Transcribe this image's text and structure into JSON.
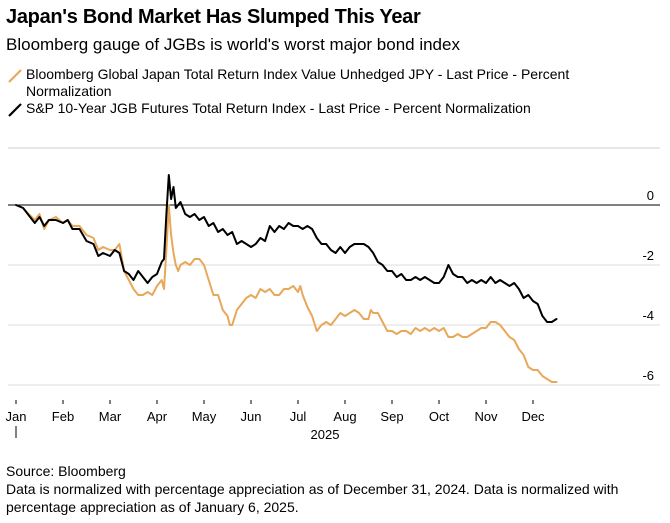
{
  "header": {
    "title": "Japan's Bond Market Has Slumped This Year",
    "subtitle": "Bloomberg gauge of JGBs is world's worst major bond index"
  },
  "footer": {
    "source": "Source: Bloomberg",
    "note": "Data is normalized with percentage appreciation as of December 31, 2024. Data is normalized with percentage appreciation as of January 6, 2025."
  },
  "chart_data": {
    "type": "line",
    "title": "Japan's Bond Market Has Slumped This Year",
    "subtitle": "Bloomberg gauge of JGBs is world's worst major bond index",
    "xlabel": "2025",
    "ylabel": "",
    "x_ticks": [
      "Jan",
      "Feb",
      "Mar",
      "Apr",
      "May",
      "Jun",
      "Jul",
      "Aug",
      "Sep",
      "Oct",
      "Nov",
      "Dec"
    ],
    "y_ticks": [
      0,
      -2,
      -4,
      -6
    ],
    "xlim": [
      0,
      11.55
    ],
    "ylim": [
      -6.5,
      1.9
    ],
    "grid": true,
    "legend_position": "top-left",
    "colors": {
      "orange": "#e8a85a",
      "black": "#000000",
      "grid": "#dddddd"
    },
    "series": [
      {
        "name": "Bloomberg Global Japan Total Return Index Value Unhedged JPY - Last Price - Percent Normalization",
        "color": "#e8a85a",
        "points": [
          [
            0.0,
            0.0
          ],
          [
            0.15,
            -0.1
          ],
          [
            0.3,
            -0.35
          ],
          [
            0.4,
            -0.5
          ],
          [
            0.5,
            -0.3
          ],
          [
            0.6,
            -0.8
          ],
          [
            0.7,
            -0.5
          ],
          [
            0.85,
            -0.4
          ],
          [
            1.0,
            -0.6
          ],
          [
            1.1,
            -0.5
          ],
          [
            1.2,
            -0.7
          ],
          [
            1.35,
            -0.7
          ],
          [
            1.5,
            -1.0
          ],
          [
            1.65,
            -1.1
          ],
          [
            1.75,
            -1.5
          ],
          [
            1.85,
            -1.4
          ],
          [
            2.0,
            -1.5
          ],
          [
            2.1,
            -1.5
          ],
          [
            2.2,
            -1.3
          ],
          [
            2.3,
            -2.2
          ],
          [
            2.4,
            -2.5
          ],
          [
            2.5,
            -2.8
          ],
          [
            2.6,
            -3.0
          ],
          [
            2.7,
            -3.0
          ],
          [
            2.8,
            -2.9
          ],
          [
            2.9,
            -3.0
          ],
          [
            3.0,
            -2.7
          ],
          [
            3.1,
            -2.5
          ],
          [
            3.15,
            -2.8
          ],
          [
            3.2,
            -1.5
          ],
          [
            3.25,
            0.0
          ],
          [
            3.3,
            -1.0
          ],
          [
            3.35,
            -1.6
          ],
          [
            3.4,
            -2.0
          ],
          [
            3.45,
            -2.2
          ],
          [
            3.5,
            -2.0
          ],
          [
            3.6,
            -1.9
          ],
          [
            3.7,
            -2.0
          ],
          [
            3.8,
            -1.8
          ],
          [
            3.9,
            -1.8
          ],
          [
            4.0,
            -2.0
          ],
          [
            4.1,
            -2.5
          ],
          [
            4.2,
            -3.0
          ],
          [
            4.3,
            -3.0
          ],
          [
            4.4,
            -3.5
          ],
          [
            4.5,
            -3.7
          ],
          [
            4.55,
            -4.0
          ],
          [
            4.6,
            -4.0
          ],
          [
            4.7,
            -3.5
          ],
          [
            4.8,
            -3.3
          ],
          [
            4.9,
            -3.1
          ],
          [
            5.0,
            -3.0
          ],
          [
            5.1,
            -3.1
          ],
          [
            5.2,
            -2.8
          ],
          [
            5.3,
            -2.9
          ],
          [
            5.4,
            -2.8
          ],
          [
            5.5,
            -3.0
          ],
          [
            5.6,
            -3.0
          ],
          [
            5.7,
            -2.8
          ],
          [
            5.8,
            -2.8
          ],
          [
            5.9,
            -2.7
          ],
          [
            6.0,
            -2.9
          ],
          [
            6.05,
            -2.7
          ],
          [
            6.1,
            -3.0
          ],
          [
            6.2,
            -3.4
          ],
          [
            6.3,
            -3.7
          ],
          [
            6.4,
            -4.2
          ],
          [
            6.5,
            -4.0
          ],
          [
            6.6,
            -3.9
          ],
          [
            6.7,
            -4.0
          ],
          [
            6.8,
            -3.8
          ],
          [
            6.9,
            -3.6
          ],
          [
            7.0,
            -3.7
          ],
          [
            7.1,
            -3.6
          ],
          [
            7.2,
            -3.5
          ],
          [
            7.3,
            -3.6
          ],
          [
            7.4,
            -3.8
          ],
          [
            7.5,
            -3.8
          ],
          [
            7.55,
            -3.5
          ],
          [
            7.6,
            -3.6
          ],
          [
            7.7,
            -3.6
          ],
          [
            7.8,
            -3.9
          ],
          [
            7.9,
            -4.2
          ],
          [
            8.0,
            -4.2
          ],
          [
            8.1,
            -4.3
          ],
          [
            8.2,
            -4.2
          ],
          [
            8.3,
            -4.2
          ],
          [
            8.4,
            -4.3
          ],
          [
            8.5,
            -4.1
          ],
          [
            8.6,
            -4.2
          ],
          [
            8.7,
            -4.1
          ],
          [
            8.8,
            -4.2
          ],
          [
            8.9,
            -4.1
          ],
          [
            9.0,
            -4.2
          ],
          [
            9.1,
            -4.1
          ],
          [
            9.2,
            -4.4
          ],
          [
            9.3,
            -4.4
          ],
          [
            9.4,
            -4.3
          ],
          [
            9.5,
            -4.4
          ],
          [
            9.6,
            -4.4
          ],
          [
            9.7,
            -4.3
          ],
          [
            9.8,
            -4.2
          ],
          [
            9.9,
            -4.1
          ],
          [
            10.0,
            -4.1
          ],
          [
            10.1,
            -3.9
          ],
          [
            10.2,
            -3.9
          ],
          [
            10.3,
            -4.0
          ],
          [
            10.4,
            -4.2
          ],
          [
            10.5,
            -4.4
          ],
          [
            10.6,
            -4.5
          ],
          [
            10.7,
            -4.8
          ],
          [
            10.8,
            -5.0
          ],
          [
            10.9,
            -5.4
          ],
          [
            11.0,
            -5.5
          ],
          [
            11.1,
            -5.5
          ],
          [
            11.2,
            -5.7
          ],
          [
            11.3,
            -5.8
          ],
          [
            11.4,
            -5.9
          ],
          [
            11.5,
            -5.9
          ]
        ]
      },
      {
        "name": "S&P 10-Year JGB Futures Total Return Index - Last Price - Percent Normalization",
        "color": "#000000",
        "points": [
          [
            0.0,
            0.0
          ],
          [
            0.15,
            -0.1
          ],
          [
            0.3,
            -0.4
          ],
          [
            0.4,
            -0.6
          ],
          [
            0.5,
            -0.4
          ],
          [
            0.6,
            -0.7
          ],
          [
            0.7,
            -0.5
          ],
          [
            0.85,
            -0.5
          ],
          [
            1.0,
            -0.6
          ],
          [
            1.1,
            -0.5
          ],
          [
            1.2,
            -0.8
          ],
          [
            1.35,
            -0.8
          ],
          [
            1.5,
            -1.2
          ],
          [
            1.65,
            -1.3
          ],
          [
            1.75,
            -1.7
          ],
          [
            1.85,
            -1.6
          ],
          [
            2.0,
            -1.7
          ],
          [
            2.1,
            -1.5
          ],
          [
            2.2,
            -1.6
          ],
          [
            2.3,
            -2.2
          ],
          [
            2.4,
            -2.3
          ],
          [
            2.5,
            -2.5
          ],
          [
            2.6,
            -2.2
          ],
          [
            2.7,
            -2.4
          ],
          [
            2.8,
            -2.6
          ],
          [
            2.9,
            -2.4
          ],
          [
            3.0,
            -2.3
          ],
          [
            3.1,
            -1.9
          ],
          [
            3.15,
            -1.8
          ],
          [
            3.2,
            -0.3
          ],
          [
            3.25,
            1.0
          ],
          [
            3.3,
            0.2
          ],
          [
            3.35,
            0.6
          ],
          [
            3.4,
            -0.1
          ],
          [
            3.5,
            0.1
          ],
          [
            3.6,
            -0.3
          ],
          [
            3.7,
            -0.4
          ],
          [
            3.8,
            -0.3
          ],
          [
            3.9,
            -0.5
          ],
          [
            4.0,
            -0.4
          ],
          [
            4.1,
            -0.7
          ],
          [
            4.2,
            -0.6
          ],
          [
            4.3,
            -0.9
          ],
          [
            4.4,
            -0.8
          ],
          [
            4.5,
            -1.0
          ],
          [
            4.6,
            -0.9
          ],
          [
            4.7,
            -1.3
          ],
          [
            4.8,
            -1.2
          ],
          [
            4.9,
            -1.3
          ],
          [
            5.0,
            -1.4
          ],
          [
            5.1,
            -1.3
          ],
          [
            5.2,
            -1.1
          ],
          [
            5.3,
            -1.2
          ],
          [
            5.4,
            -0.7
          ],
          [
            5.5,
            -0.9
          ],
          [
            5.6,
            -0.7
          ],
          [
            5.7,
            -0.8
          ],
          [
            5.8,
            -0.6
          ],
          [
            5.9,
            -0.7
          ],
          [
            6.0,
            -0.7
          ],
          [
            6.1,
            -0.8
          ],
          [
            6.2,
            -0.7
          ],
          [
            6.3,
            -0.8
          ],
          [
            6.4,
            -1.1
          ],
          [
            6.5,
            -1.3
          ],
          [
            6.6,
            -1.3
          ],
          [
            6.7,
            -1.5
          ],
          [
            6.8,
            -1.6
          ],
          [
            6.9,
            -1.4
          ],
          [
            7.0,
            -1.6
          ],
          [
            7.1,
            -1.4
          ],
          [
            7.2,
            -1.3
          ],
          [
            7.3,
            -1.3
          ],
          [
            7.4,
            -1.3
          ],
          [
            7.5,
            -1.4
          ],
          [
            7.6,
            -1.6
          ],
          [
            7.7,
            -1.9
          ],
          [
            7.8,
            -2.0
          ],
          [
            7.9,
            -2.2
          ],
          [
            8.0,
            -2.2
          ],
          [
            8.1,
            -2.4
          ],
          [
            8.2,
            -2.3
          ],
          [
            8.3,
            -2.5
          ],
          [
            8.4,
            -2.5
          ],
          [
            8.5,
            -2.4
          ],
          [
            8.6,
            -2.5
          ],
          [
            8.7,
            -2.4
          ],
          [
            8.8,
            -2.5
          ],
          [
            8.9,
            -2.6
          ],
          [
            9.0,
            -2.6
          ],
          [
            9.1,
            -2.4
          ],
          [
            9.2,
            -2.0
          ],
          [
            9.3,
            -2.3
          ],
          [
            9.4,
            -2.4
          ],
          [
            9.5,
            -2.4
          ],
          [
            9.6,
            -2.6
          ],
          [
            9.7,
            -2.5
          ],
          [
            9.8,
            -2.6
          ],
          [
            9.9,
            -2.5
          ],
          [
            10.0,
            -2.6
          ],
          [
            10.1,
            -2.4
          ],
          [
            10.2,
            -2.6
          ],
          [
            10.3,
            -2.5
          ],
          [
            10.4,
            -2.6
          ],
          [
            10.5,
            -2.7
          ],
          [
            10.6,
            -2.6
          ],
          [
            10.7,
            -2.8
          ],
          [
            10.8,
            -3.1
          ],
          [
            10.9,
            -3.0
          ],
          [
            11.0,
            -3.2
          ],
          [
            11.1,
            -3.3
          ],
          [
            11.2,
            -3.7
          ],
          [
            11.3,
            -3.9
          ],
          [
            11.4,
            -3.9
          ],
          [
            11.5,
            -3.8
          ]
        ]
      }
    ]
  }
}
